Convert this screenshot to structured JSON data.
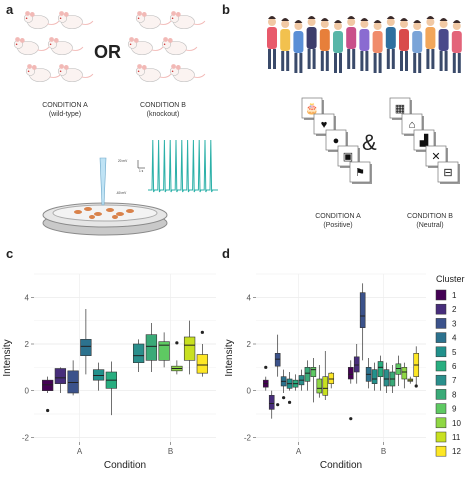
{
  "panels": {
    "a": {
      "letter": "a",
      "or": "OR",
      "condition_a": {
        "title": "CONDITION A",
        "sub": "(wild-type)"
      },
      "condition_b": {
        "title": "CONDITION B",
        "sub": "(knockout)"
      },
      "trace_labels": {
        "top": "20 mV",
        "time": "1 s",
        "baseline": "-60 mV"
      }
    },
    "b": {
      "letter": "b",
      "amp": "&",
      "condition_a": {
        "title": "CONDITION A",
        "sub": "(Positive)"
      },
      "condition_b": {
        "title": "CONDITION B",
        "sub": "(Neutral)"
      }
    },
    "c": {
      "letter": "c"
    },
    "d": {
      "letter": "d"
    }
  },
  "colors": {
    "1": "#440154",
    "2": "#472d7b",
    "3": "#3b528b",
    "4": "#2c728e",
    "5": "#21918c",
    "6": "#28ae80",
    "7": "#2a8f8c",
    "8": "#3aaa78",
    "9": "#5ec962",
    "10": "#8fd744",
    "11": "#c8e020",
    "12": "#fde725"
  },
  "chart_data": [
    {
      "type": "box",
      "panel": "c",
      "xlabel": "Condition",
      "ylabel": "Intensity",
      "ylim": [
        -2.2,
        5
      ],
      "yticks": [
        -2,
        0,
        2,
        4
      ],
      "categories": [
        "A",
        "B"
      ],
      "series": [
        {
          "cond": "A",
          "cluster": 1,
          "q1": 0.0,
          "med": 0.25,
          "q3": 0.45,
          "lo": -0.1,
          "hi": 0.6,
          "out": [
            -0.85
          ]
        },
        {
          "cond": "A",
          "cluster": 2,
          "q1": 0.3,
          "med": 0.55,
          "q3": 0.95,
          "lo": -0.1,
          "hi": 1.0,
          "out": []
        },
        {
          "cond": "A",
          "cluster": 3,
          "q1": -0.1,
          "med": 0.35,
          "q3": 0.85,
          "lo": -0.2,
          "hi": 1.3,
          "out": []
        },
        {
          "cond": "A",
          "cluster": 4,
          "q1": 1.5,
          "med": 1.9,
          "q3": 2.2,
          "lo": 0.7,
          "hi": 3.5,
          "out": []
        },
        {
          "cond": "A",
          "cluster": 5,
          "q1": 0.45,
          "med": 0.65,
          "q3": 0.9,
          "lo": 0.0,
          "hi": 1.2,
          "out": []
        },
        {
          "cond": "A",
          "cluster": 6,
          "q1": 0.1,
          "med": 0.45,
          "q3": 0.8,
          "lo": -1.05,
          "hi": 1.25,
          "out": []
        },
        {
          "cond": "B",
          "cluster": 7,
          "q1": 1.2,
          "med": 1.5,
          "q3": 2.0,
          "lo": 0.8,
          "hi": 2.2,
          "out": []
        },
        {
          "cond": "B",
          "cluster": 8,
          "q1": 1.3,
          "med": 1.9,
          "q3": 2.4,
          "lo": 0.8,
          "hi": 2.9,
          "out": []
        },
        {
          "cond": "B",
          "cluster": 9,
          "q1": 1.3,
          "med": 1.95,
          "q3": 2.1,
          "lo": 1.0,
          "hi": 2.5,
          "out": []
        },
        {
          "cond": "B",
          "cluster": 10,
          "q1": 0.85,
          "med": 0.95,
          "q3": 1.05,
          "lo": 0.7,
          "hi": 1.3,
          "out": [
            2.05
          ]
        },
        {
          "cond": "B",
          "cluster": 11,
          "q1": 1.3,
          "med": 1.95,
          "q3": 2.3,
          "lo": 0.7,
          "hi": 3.0,
          "out": []
        },
        {
          "cond": "B",
          "cluster": 12,
          "q1": 0.75,
          "med": 1.1,
          "q3": 1.55,
          "lo": 0.6,
          "hi": 2.0,
          "out": [
            2.5
          ]
        }
      ]
    },
    {
      "type": "box",
      "panel": "d",
      "xlabel": "Condition",
      "ylabel": "Intensity",
      "ylim": [
        -2.2,
        5
      ],
      "yticks": [
        -2,
        0,
        2,
        4
      ],
      "categories": [
        "A",
        "B"
      ],
      "legend_title": "Cluster",
      "legend": [
        "1",
        "2",
        "3",
        "4",
        "5",
        "6",
        "7",
        "8",
        "9",
        "10",
        "11",
        "12"
      ],
      "series": [
        {
          "cond": "A",
          "cluster": 1,
          "q1": 0.15,
          "med": 0.3,
          "q3": 0.45,
          "lo": 0.0,
          "hi": 0.6,
          "out": [
            1.0
          ]
        },
        {
          "cond": "A",
          "cluster": 2,
          "q1": -0.8,
          "med": -0.55,
          "q3": -0.2,
          "lo": -1.2,
          "hi": 0.0,
          "out": []
        },
        {
          "cond": "A",
          "cluster": 3,
          "q1": 1.05,
          "med": 1.35,
          "q3": 1.6,
          "lo": 0.6,
          "hi": 2.4,
          "out": [
            -0.6
          ]
        },
        {
          "cond": "A",
          "cluster": 4,
          "q1": 0.2,
          "med": 0.4,
          "q3": 0.6,
          "lo": -0.1,
          "hi": 0.9,
          "out": [
            -0.3
          ]
        },
        {
          "cond": "A",
          "cluster": 5,
          "q1": 0.1,
          "med": 0.3,
          "q3": 0.5,
          "lo": 0.0,
          "hi": 0.8,
          "out": [
            -0.5
          ]
        },
        {
          "cond": "A",
          "cluster": 6,
          "q1": 0.15,
          "med": 0.3,
          "q3": 0.45,
          "lo": 0.0,
          "hi": 0.7,
          "out": []
        },
        {
          "cond": "A",
          "cluster": 7,
          "q1": 0.25,
          "med": 0.45,
          "q3": 0.65,
          "lo": 0.0,
          "hi": 0.9,
          "out": []
        },
        {
          "cond": "A",
          "cluster": 8,
          "q1": 0.4,
          "med": 0.75,
          "q3": 1.0,
          "lo": 0.0,
          "hi": 1.3,
          "out": []
        },
        {
          "cond": "A",
          "cluster": 9,
          "q1": 0.6,
          "med": 0.9,
          "q3": 1.0,
          "lo": -0.5,
          "hi": 1.4,
          "out": []
        },
        {
          "cond": "A",
          "cluster": 10,
          "q1": -0.1,
          "med": 0.1,
          "q3": 0.5,
          "lo": -0.3,
          "hi": 1.1,
          "out": []
        },
        {
          "cond": "A",
          "cluster": 11,
          "q1": -0.2,
          "med": 0.1,
          "q3": 0.6,
          "lo": -0.4,
          "hi": 1.7,
          "out": []
        },
        {
          "cond": "A",
          "cluster": 12,
          "q1": 0.3,
          "med": 0.5,
          "q3": 0.75,
          "lo": 0.1,
          "hi": 0.8,
          "out": []
        },
        {
          "cond": "B",
          "cluster": 1,
          "q1": 0.5,
          "med": 0.7,
          "q3": 1.0,
          "lo": 0.3,
          "hi": 1.3,
          "out": [
            -1.2
          ]
        },
        {
          "cond": "B",
          "cluster": 2,
          "q1": 0.8,
          "med": 1.1,
          "q3": 1.45,
          "lo": 0.3,
          "hi": 2.0,
          "out": []
        },
        {
          "cond": "B",
          "cluster": 3,
          "q1": 2.7,
          "med": 3.2,
          "q3": 4.2,
          "lo": 1.3,
          "hi": 4.6,
          "out": []
        },
        {
          "cond": "B",
          "cluster": 4,
          "q1": 0.4,
          "med": 0.7,
          "q3": 1.0,
          "lo": 0.1,
          "hi": 1.4,
          "out": []
        },
        {
          "cond": "B",
          "cluster": 5,
          "q1": 0.3,
          "med": 0.5,
          "q3": 0.9,
          "lo": 0.0,
          "hi": 1.2,
          "out": []
        },
        {
          "cond": "B",
          "cluster": 6,
          "q1": 0.6,
          "med": 1.0,
          "q3": 1.25,
          "lo": 0.0,
          "hi": 1.5,
          "out": []
        },
        {
          "cond": "B",
          "cluster": 7,
          "q1": 0.2,
          "med": 0.5,
          "q3": 0.9,
          "lo": -0.1,
          "hi": 1.2,
          "out": []
        },
        {
          "cond": "B",
          "cluster": 8,
          "q1": 0.2,
          "med": 0.5,
          "q3": 0.8,
          "lo": -0.1,
          "hi": 1.1,
          "out": []
        },
        {
          "cond": "B",
          "cluster": 9,
          "q1": 0.7,
          "med": 0.95,
          "q3": 1.15,
          "lo": 0.2,
          "hi": 1.5,
          "out": []
        },
        {
          "cond": "B",
          "cluster": 10,
          "q1": 0.5,
          "med": 0.8,
          "q3": 1.0,
          "lo": 0.1,
          "hi": 1.2,
          "out": []
        },
        {
          "cond": "B",
          "cluster": 11,
          "q1": 0.4,
          "med": 0.45,
          "q3": 0.5,
          "lo": 0.3,
          "hi": 0.6,
          "out": []
        },
        {
          "cond": "B",
          "cluster": 12,
          "q1": 0.6,
          "med": 1.1,
          "q3": 1.6,
          "lo": 0.2,
          "hi": 1.9,
          "out": [
            0.2
          ]
        }
      ]
    }
  ]
}
